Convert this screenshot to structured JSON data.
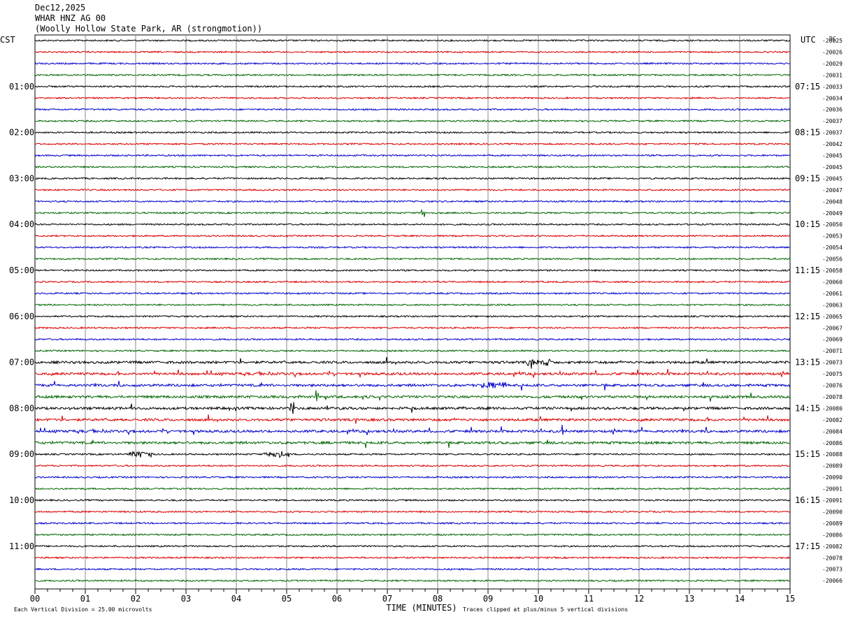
{
  "header": {
    "date": "Dec12,2025",
    "station": "WHAR HNZ AG 00",
    "location": "(Woolly Hollow State Park, AR (strongmotion))"
  },
  "chart_data": {
    "type": "line",
    "subtype": "helicorder",
    "left_axis_label": "CST",
    "right_axis_label": "UTC",
    "dc_label": "DC",
    "xlabel": "TIME (MINUTES)",
    "x_ticks": [
      "00",
      "01",
      "02",
      "03",
      "04",
      "05",
      "06",
      "07",
      "08",
      "09",
      "10",
      "11",
      "12",
      "13",
      "14",
      "15"
    ],
    "xlim": [
      0,
      15
    ],
    "trace_minutes_per_line": 15,
    "trace_colors": [
      "#000000",
      "#dd0000",
      "#0000cc",
      "#006600"
    ],
    "left_hour_labels": [
      "01:00",
      "02:00",
      "03:00",
      "04:00",
      "05:00",
      "06:00",
      "07:00",
      "08:00",
      "09:00",
      "10:00",
      "11:00"
    ],
    "right_hour_labels": [
      "07:15",
      "08:15",
      "09:15",
      "10:15",
      "11:15",
      "12:15",
      "13:15",
      "14:15",
      "15:15",
      "16:15",
      "17:15"
    ],
    "dc_offsets": [
      "-20025",
      "-20026",
      "-20029",
      "-20031",
      "-20033",
      "-20034",
      "-20036",
      "-20037",
      "-20037",
      "-20042",
      "-20045",
      "-20045",
      "-20045",
      "-20047",
      "-20048",
      "-20049",
      "-20050",
      "-20053",
      "-20054",
      "-20056",
      "-20058",
      "-20060",
      "-20061",
      "-20063",
      "-20065",
      "-20067",
      "-20069",
      "-20071",
      "-20073",
      "-20075",
      "-20076",
      "-20078",
      "-20080",
      "-20082",
      "-20084",
      "-20086",
      "-20088",
      "-20089",
      "-20090",
      "-20091",
      "-20091",
      "-20090",
      "-20089",
      "-20086",
      "-20082",
      "-20078",
      "-20073",
      "-20066"
    ],
    "scale_note": "Each Vertical Division =  25.00 microvolts",
    "clip_note": "Traces clipped at plus/minus 5 vertical divisions",
    "events": [
      {
        "trace": 15,
        "minute": 7.7,
        "note": "spike"
      },
      {
        "trace": 28,
        "minute": 10.0,
        "note": "burst"
      },
      {
        "trace": 30,
        "minute": 9.1,
        "note": "burst"
      },
      {
        "trace": 31,
        "minute": 5.6,
        "note": "spike"
      },
      {
        "trace": 32,
        "minute": 5.1,
        "note": "spike"
      },
      {
        "trace": 34,
        "minute": 10.5,
        "note": "spike"
      },
      {
        "trace": 36,
        "minute": 2.1,
        "note": "burst"
      },
      {
        "trace": 36,
        "minute": 4.8,
        "note": "burst"
      }
    ]
  }
}
